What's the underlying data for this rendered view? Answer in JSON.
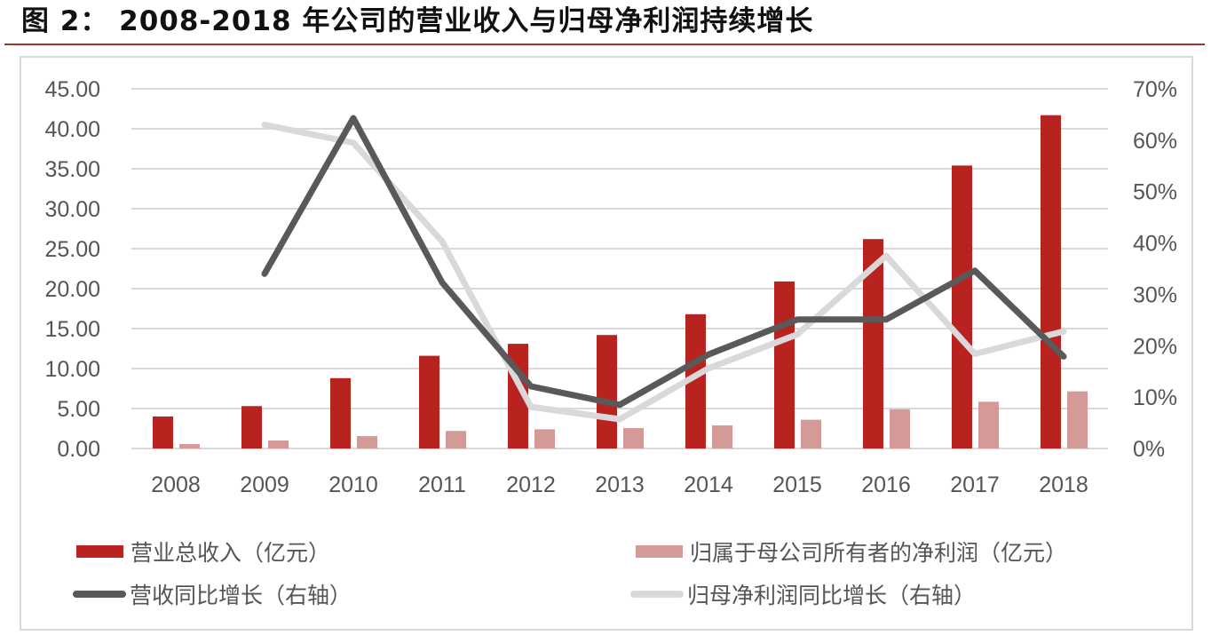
{
  "header": {
    "title": "图 2：  2008-2018 年公司的营业收入与归母净利润持续增长"
  },
  "colors": {
    "revenue_bar": "#b8221f",
    "profit_bar": "#d49a97",
    "revenue_growth_line": "#595959",
    "profit_growth_line": "#d9d9d9",
    "gridline": "#d9d9d9",
    "axis_text": "#555555",
    "title_rule": "#a0352a"
  },
  "legend": {
    "revenue": "营业总收入（亿元）",
    "profit": "归属于母公司所有者的净利润（亿元）",
    "revenue_growth": "营收同比增长（右轴）",
    "profit_growth": "归母净利润同比增长（右轴）"
  },
  "chart_data": {
    "type": "bar",
    "title": "2008-2018 年公司的营业收入与归母净利润持续增长",
    "categories": [
      "2008",
      "2009",
      "2010",
      "2011",
      "2012",
      "2013",
      "2014",
      "2015",
      "2016",
      "2017",
      "2018"
    ],
    "series": [
      {
        "name": "营业总收入（亿元）",
        "type": "bar",
        "axis": "left",
        "values": [
          4.0,
          5.3,
          8.8,
          11.6,
          13.1,
          14.2,
          16.8,
          20.9,
          26.2,
          35.4,
          41.7
        ]
      },
      {
        "name": "归属于母公司所有者的净利润（亿元）",
        "type": "bar",
        "axis": "left",
        "values": [
          0.55,
          1.0,
          1.55,
          2.2,
          2.4,
          2.55,
          2.9,
          3.6,
          4.9,
          5.85,
          7.15
        ]
      },
      {
        "name": "营收同比增长（右轴）",
        "type": "line",
        "axis": "right",
        "values": [
          null,
          34.0,
          64.3,
          32.3,
          12.1,
          8.5,
          18.3,
          25.1,
          25.1,
          34.6,
          17.9
        ]
      },
      {
        "name": "归母净利润同比增长（右轴）",
        "type": "line",
        "axis": "right",
        "values": [
          null,
          63.0,
          59.5,
          40.3,
          8.1,
          5.7,
          15.6,
          22.2,
          37.5,
          18.4,
          22.8
        ]
      }
    ],
    "xlabel": "",
    "ylabel": "",
    "ylim": [
      0,
      45
    ],
    "y_ticks": [
      "0.00",
      "5.00",
      "10.00",
      "15.00",
      "20.00",
      "25.00",
      "30.00",
      "35.00",
      "40.00",
      "45.00"
    ],
    "y2lim": [
      0,
      70
    ],
    "y2_ticks": [
      "0%",
      "10%",
      "20%",
      "30%",
      "40%",
      "50%",
      "60%",
      "70%"
    ],
    "grid": true,
    "legend_position": "bottom"
  }
}
